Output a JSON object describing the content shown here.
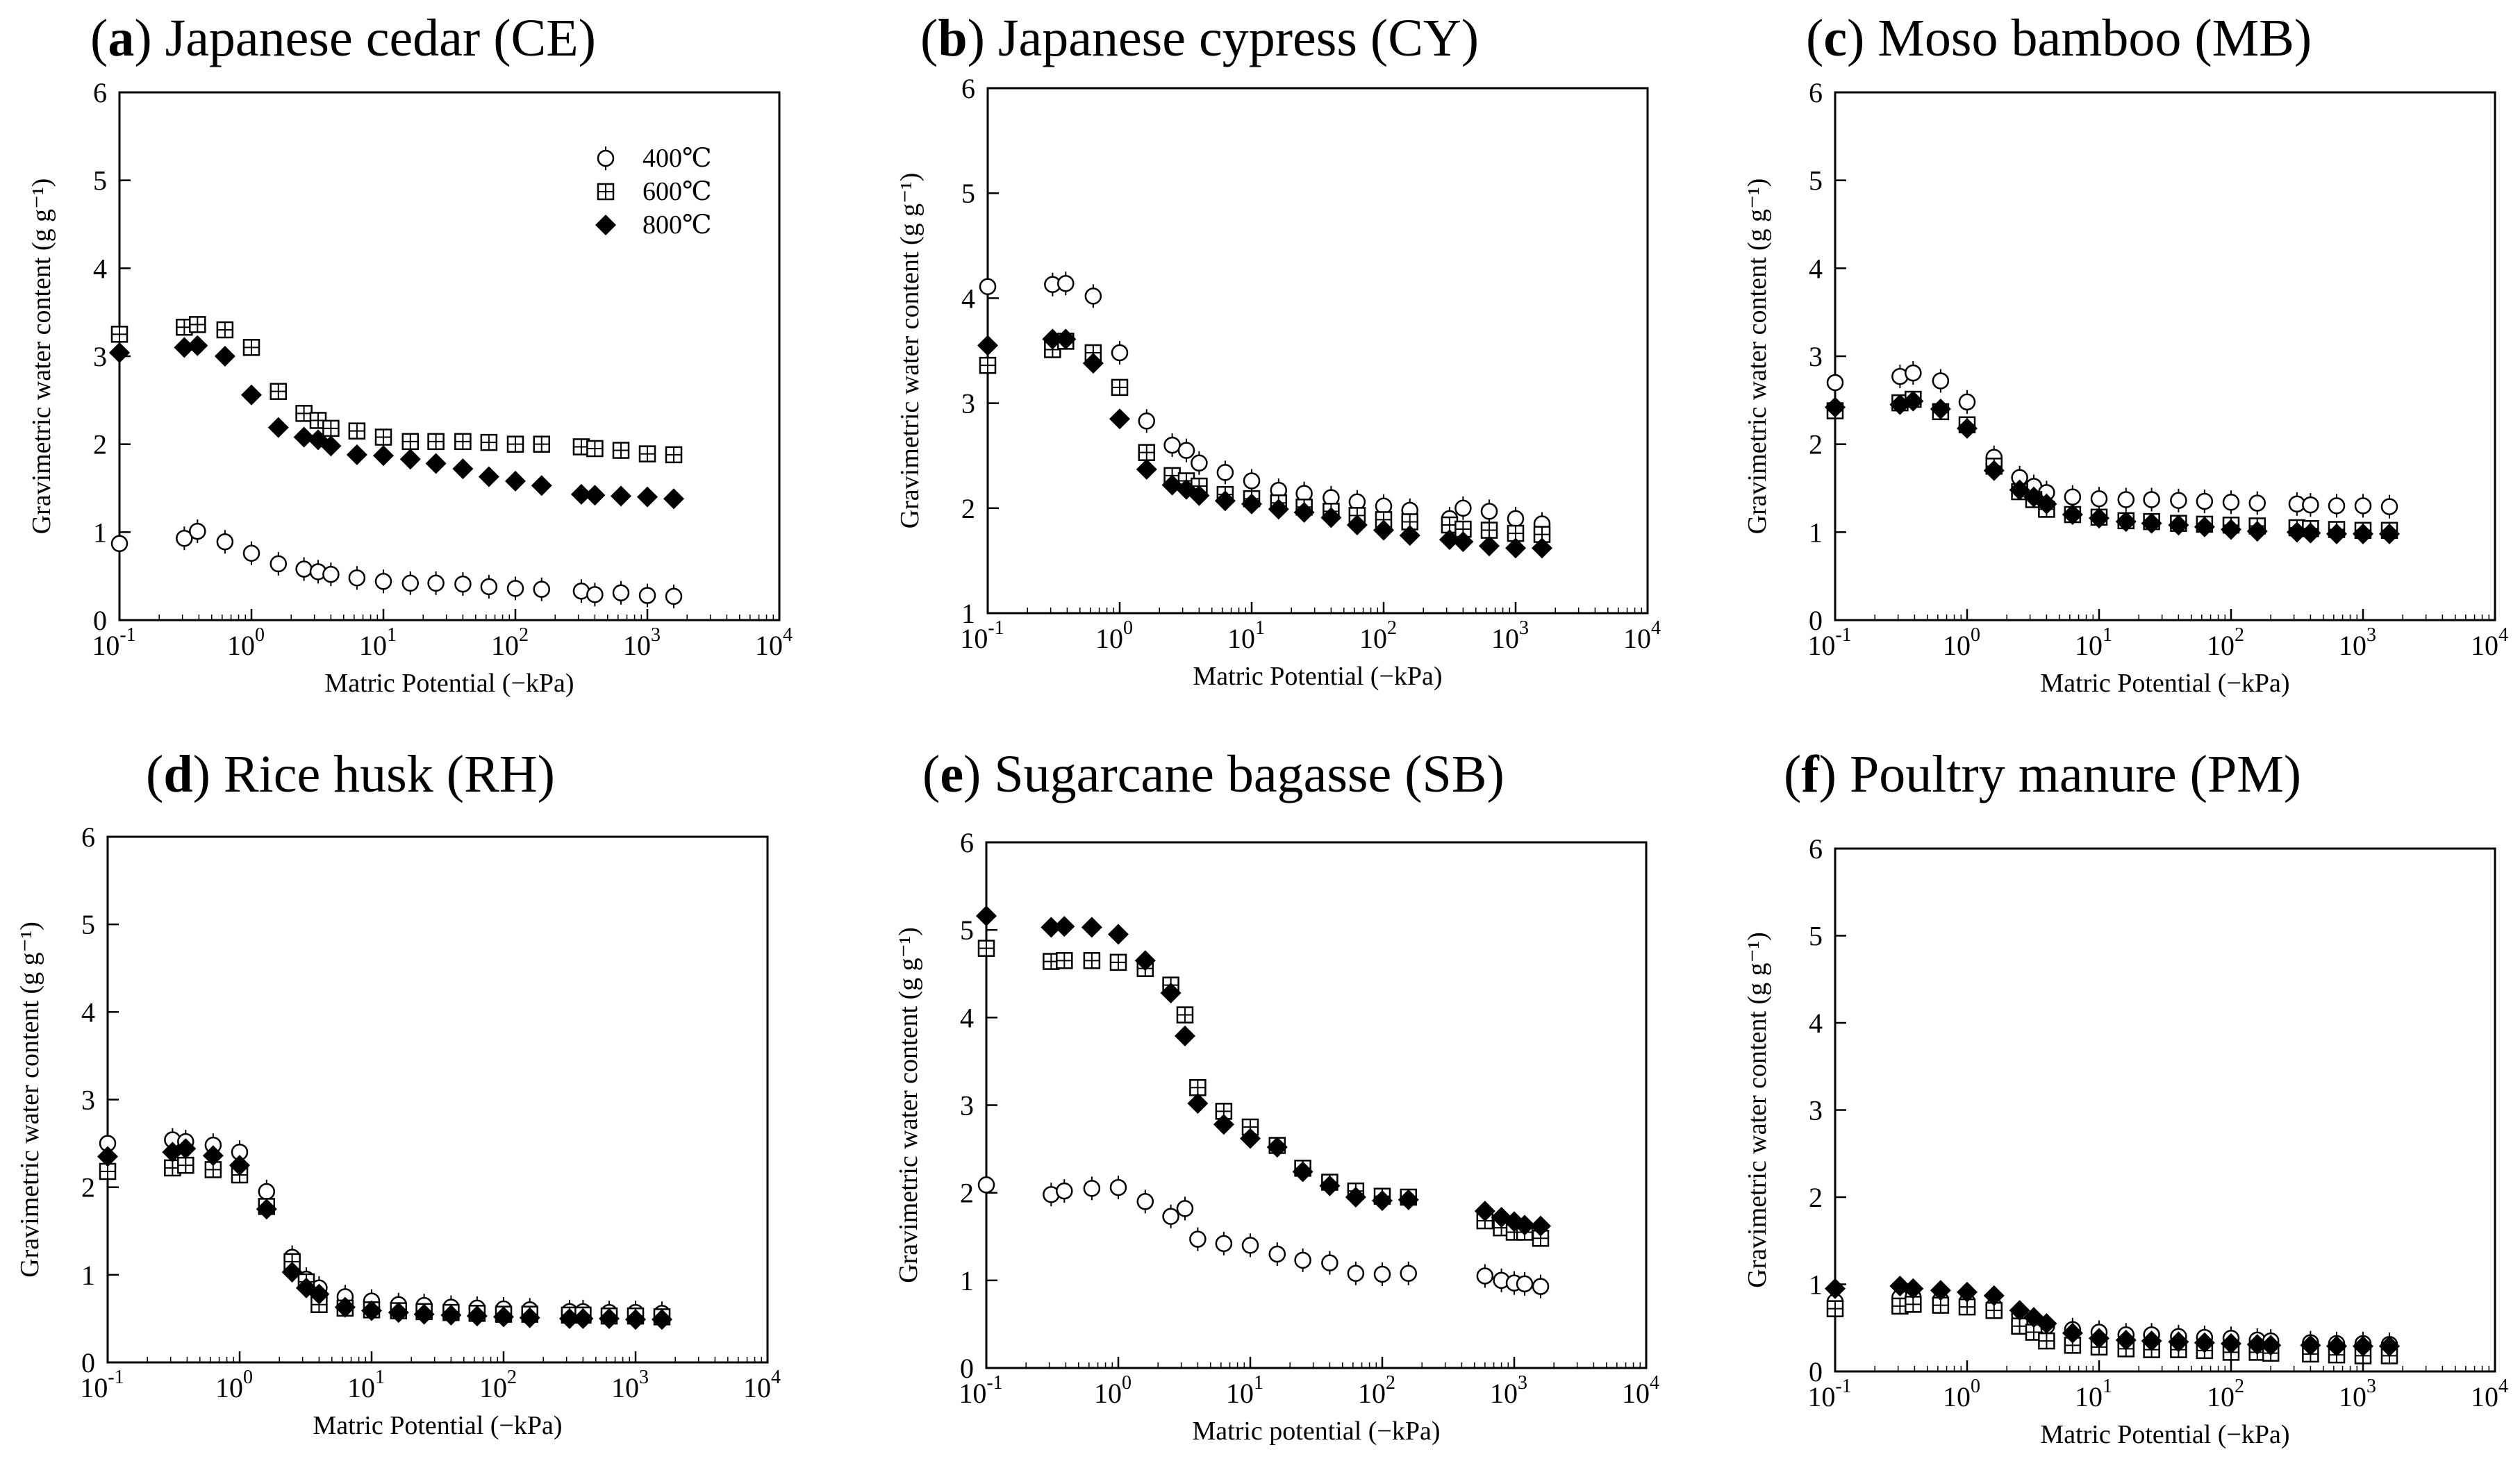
{
  "figure": {
    "legend": [
      "400℃",
      "600℃",
      "800℃"
    ],
    "marker_types": {
      "400℃": "open-circle",
      "600℃": "boxed-plus",
      "800℃": "filled-diamond"
    }
  },
  "chart_data": [
    {
      "type": "scatter",
      "panel_letter": "a",
      "title": "Japanese cedar (CE)",
      "xlabel": "Matric Potential (−kPa)",
      "ylabel": "Gravimetric water content (g g⁻¹)",
      "x_scale": "log",
      "xlim": [
        0.1,
        10000
      ],
      "ylim": [
        0,
        6
      ],
      "yticks": [
        0,
        1,
        2,
        3,
        4,
        5,
        6
      ],
      "legend": "top-right",
      "series": [
        {
          "name": "400℃",
          "marker": "circle",
          "x": [
            0.1,
            0.31,
            0.39,
            0.63,
            1.0,
            1.6,
            2.5,
            3.2,
            4.0,
            6.3,
            10,
            16,
            25,
            40,
            63,
            100,
            158,
            316,
            400,
            631,
            1000,
            1585
          ],
          "y": [
            0.87,
            0.93,
            1.01,
            0.89,
            0.76,
            0.64,
            0.58,
            0.55,
            0.52,
            0.48,
            0.44,
            0.42,
            0.42,
            0.41,
            0.38,
            0.36,
            0.35,
            0.33,
            0.29,
            0.31,
            0.28,
            0.27
          ]
        },
        {
          "name": "600℃",
          "marker": "boxed-plus",
          "x": [
            0.1,
            0.31,
            0.39,
            0.63,
            1.0,
            1.6,
            2.5,
            3.2,
            4.0,
            6.3,
            10,
            16,
            25,
            40,
            63,
            100,
            158,
            316,
            400,
            631,
            1000,
            1585
          ],
          "y": [
            3.25,
            3.33,
            3.36,
            3.3,
            3.1,
            2.6,
            2.35,
            2.27,
            2.18,
            2.15,
            2.08,
            2.03,
            2.03,
            2.03,
            2.02,
            2.0,
            2.0,
            1.97,
            1.95,
            1.93,
            1.89,
            1.88
          ]
        },
        {
          "name": "800℃",
          "marker": "diamond",
          "x": [
            0.1,
            0.31,
            0.39,
            0.63,
            1.0,
            1.6,
            2.5,
            3.2,
            4.0,
            6.3,
            10,
            16,
            25,
            40,
            63,
            100,
            158,
            316,
            400,
            631,
            1000,
            1585
          ],
          "y": [
            3.04,
            3.1,
            3.12,
            3.0,
            2.56,
            2.19,
            2.08,
            2.05,
            1.98,
            1.88,
            1.87,
            1.83,
            1.78,
            1.72,
            1.63,
            1.58,
            1.53,
            1.43,
            1.42,
            1.41,
            1.4,
            1.38
          ]
        }
      ]
    },
    {
      "type": "scatter",
      "panel_letter": "b",
      "title": "Japanese cypress (CY)",
      "xlabel": "Matric Potential (−kPa)",
      "ylabel": "Gravimetric water content (g g⁻¹)",
      "x_scale": "log",
      "xlim": [
        0.1,
        10000
      ],
      "ylim": [
        1,
        6
      ],
      "yticks": [
        1,
        2,
        3,
        4,
        5,
        6
      ],
      "series": [
        {
          "name": "400℃",
          "marker": "circle",
          "x": [
            0.1,
            0.31,
            0.39,
            0.63,
            1.0,
            1.6,
            2.5,
            3.2,
            4.0,
            6.3,
            10,
            16,
            25,
            40,
            63,
            100,
            158,
            316,
            400,
            631,
            1000,
            1585
          ],
          "y": [
            4.11,
            4.13,
            4.14,
            4.02,
            3.48,
            2.83,
            2.6,
            2.55,
            2.43,
            2.34,
            2.26,
            2.17,
            2.14,
            2.1,
            2.06,
            2.02,
            1.98,
            1.9,
            2.0,
            1.97,
            1.9,
            1.85
          ]
        },
        {
          "name": "600℃",
          "marker": "boxed-plus",
          "x": [
            0.1,
            0.31,
            0.39,
            0.63,
            1.0,
            1.6,
            2.5,
            3.2,
            4.0,
            6.3,
            10,
            16,
            25,
            40,
            63,
            100,
            158,
            316,
            400,
            631,
            1000,
            1585
          ],
          "y": [
            3.36,
            3.51,
            3.59,
            3.48,
            3.15,
            2.53,
            2.31,
            2.26,
            2.21,
            2.13,
            2.09,
            2.05,
            2.01,
            1.97,
            1.93,
            1.89,
            1.87,
            1.84,
            1.8,
            1.79,
            1.76,
            1.75
          ]
        },
        {
          "name": "800℃",
          "marker": "diamond",
          "x": [
            0.1,
            0.31,
            0.39,
            0.63,
            1.0,
            1.6,
            2.5,
            3.2,
            4.0,
            6.3,
            10,
            16,
            25,
            40,
            63,
            100,
            158,
            316,
            400,
            631,
            1000,
            1585
          ],
          "y": [
            3.55,
            3.61,
            3.61,
            3.38,
            2.85,
            2.37,
            2.22,
            2.18,
            2.12,
            2.07,
            2.04,
            1.99,
            1.96,
            1.91,
            1.84,
            1.79,
            1.74,
            1.7,
            1.68,
            1.64,
            1.62,
            1.62
          ]
        }
      ]
    },
    {
      "type": "scatter",
      "panel_letter": "c",
      "title": "Moso bamboo (MB)",
      "xlabel": "Matric Potential (−kPa)",
      "ylabel": "Gravimetric water content (g g⁻¹)",
      "x_scale": "log",
      "xlim": [
        0.1,
        10000
      ],
      "ylim": [
        0,
        6
      ],
      "yticks": [
        0,
        1,
        2,
        3,
        4,
        5,
        6
      ],
      "series": [
        {
          "name": "400℃",
          "marker": "circle",
          "x": [
            0.1,
            0.31,
            0.39,
            0.63,
            1.0,
            1.6,
            2.5,
            3.2,
            4.0,
            6.3,
            10,
            16,
            25,
            40,
            63,
            100,
            158,
            316,
            400,
            631,
            1000,
            1585
          ],
          "y": [
            2.7,
            2.77,
            2.81,
            2.72,
            2.48,
            1.85,
            1.62,
            1.52,
            1.45,
            1.4,
            1.38,
            1.37,
            1.37,
            1.36,
            1.35,
            1.34,
            1.33,
            1.32,
            1.31,
            1.3,
            1.3,
            1.29
          ]
        },
        {
          "name": "600℃",
          "marker": "boxed-plus",
          "x": [
            0.1,
            0.31,
            0.39,
            0.63,
            1.0,
            1.6,
            2.5,
            3.2,
            4.0,
            6.3,
            10,
            16,
            25,
            40,
            63,
            100,
            158,
            316,
            400,
            631,
            1000,
            1585
          ],
          "y": [
            2.38,
            2.47,
            2.51,
            2.37,
            2.22,
            1.75,
            1.46,
            1.37,
            1.26,
            1.2,
            1.17,
            1.13,
            1.12,
            1.1,
            1.09,
            1.08,
            1.07,
            1.05,
            1.04,
            1.03,
            1.02,
            1.02
          ]
        },
        {
          "name": "800℃",
          "marker": "diamond",
          "x": [
            0.1,
            0.31,
            0.39,
            0.63,
            1.0,
            1.6,
            2.5,
            3.2,
            4.0,
            6.3,
            10,
            16,
            25,
            40,
            63,
            100,
            158,
            316,
            400,
            631,
            1000,
            1585
          ],
          "y": [
            2.42,
            2.45,
            2.49,
            2.4,
            2.18,
            1.7,
            1.48,
            1.4,
            1.32,
            1.2,
            1.16,
            1.12,
            1.1,
            1.08,
            1.06,
            1.03,
            1.01,
            1.0,
            0.99,
            0.98,
            0.98,
            0.98
          ]
        }
      ]
    },
    {
      "type": "scatter",
      "panel_letter": "d",
      "title": "Rice husk (RH)",
      "xlabel": "Matric Potential (−kPa)",
      "ylabel": "Gravimetric water content (g g⁻¹)",
      "x_scale": "log",
      "xlim": [
        0.1,
        10000
      ],
      "ylim": [
        0,
        6
      ],
      "yticks": [
        0,
        1,
        2,
        3,
        4,
        5,
        6
      ],
      "series": [
        {
          "name": "400℃",
          "marker": "circle",
          "x": [
            0.1,
            0.31,
            0.39,
            0.63,
            1.0,
            1.6,
            2.5,
            3.2,
            4.0,
            6.3,
            10,
            16,
            25,
            40,
            63,
            100,
            158,
            316,
            400,
            631,
            1000,
            1585
          ],
          "y": [
            2.5,
            2.54,
            2.52,
            2.48,
            2.4,
            1.95,
            1.2,
            0.95,
            0.85,
            0.75,
            0.7,
            0.66,
            0.65,
            0.63,
            0.62,
            0.61,
            0.6,
            0.58,
            0.58,
            0.57,
            0.57,
            0.56
          ]
        },
        {
          "name": "600℃",
          "marker": "boxed-plus",
          "x": [
            0.1,
            0.31,
            0.39,
            0.63,
            1.0,
            1.6,
            2.5,
            3.2,
            4.0,
            6.3,
            10,
            16,
            25,
            40,
            63,
            100,
            158,
            316,
            400,
            631,
            1000,
            1585
          ],
          "y": [
            2.18,
            2.22,
            2.25,
            2.2,
            2.14,
            1.78,
            1.15,
            0.92,
            0.66,
            0.62,
            0.6,
            0.59,
            0.58,
            0.57,
            0.56,
            0.55,
            0.55,
            0.54,
            0.54,
            0.53,
            0.53,
            0.52
          ]
        },
        {
          "name": "800℃",
          "marker": "diamond",
          "x": [
            0.1,
            0.31,
            0.39,
            0.63,
            1.0,
            1.6,
            2.5,
            3.2,
            4.0,
            6.3,
            10,
            16,
            25,
            40,
            63,
            100,
            158,
            316,
            400,
            631,
            1000,
            1585
          ],
          "y": [
            2.35,
            2.4,
            2.44,
            2.36,
            2.25,
            1.75,
            1.03,
            0.85,
            0.78,
            0.63,
            0.59,
            0.57,
            0.55,
            0.54,
            0.53,
            0.52,
            0.51,
            0.5,
            0.5,
            0.5,
            0.49,
            0.49
          ]
        }
      ]
    },
    {
      "type": "scatter",
      "panel_letter": "e",
      "title": "Sugarcane bagasse (SB)",
      "xlabel": "Matric potential (−kPa)",
      "ylabel": "Gravimetric water content (g g⁻¹)",
      "x_scale": "log",
      "xlim": [
        0.1,
        10000
      ],
      "ylim": [
        0,
        6
      ],
      "yticks": [
        0,
        1,
        2,
        3,
        4,
        5,
        6
      ],
      "series": [
        {
          "name": "400℃",
          "marker": "circle",
          "x": [
            0.1,
            0.31,
            0.39,
            0.63,
            1.0,
            1.6,
            2.5,
            3.2,
            4.0,
            6.3,
            10,
            16,
            25,
            40,
            63,
            100,
            158,
            600,
            800,
            1000,
            1200,
            1585
          ],
          "y": [
            2.09,
            1.98,
            2.02,
            2.05,
            2.06,
            1.9,
            1.73,
            1.82,
            1.47,
            1.42,
            1.4,
            1.3,
            1.23,
            1.2,
            1.08,
            1.07,
            1.08,
            1.05,
            1.0,
            0.97,
            0.96,
            0.93
          ]
        },
        {
          "name": "600℃",
          "marker": "boxed-plus",
          "x": [
            0.1,
            0.31,
            0.39,
            0.63,
            1.0,
            1.6,
            2.5,
            3.2,
            4.0,
            6.3,
            10,
            16,
            25,
            40,
            63,
            100,
            158,
            600,
            800,
            1000,
            1200,
            1585
          ],
          "y": [
            4.79,
            4.64,
            4.65,
            4.65,
            4.63,
            4.56,
            4.37,
            4.03,
            3.2,
            2.93,
            2.75,
            2.54,
            2.28,
            2.12,
            2.02,
            1.96,
            1.95,
            1.68,
            1.6,
            1.55,
            1.55,
            1.48
          ]
        },
        {
          "name": "800℃",
          "marker": "diamond",
          "x": [
            0.1,
            0.31,
            0.39,
            0.63,
            1.0,
            1.6,
            2.5,
            3.2,
            4.0,
            6.3,
            10,
            16,
            25,
            40,
            63,
            100,
            158,
            600,
            800,
            1000,
            1200,
            1585
          ],
          "y": [
            5.16,
            5.03,
            5.04,
            5.03,
            4.95,
            4.65,
            4.28,
            3.79,
            3.02,
            2.78,
            2.62,
            2.52,
            2.24,
            2.08,
            1.95,
            1.91,
            1.92,
            1.79,
            1.72,
            1.67,
            1.63,
            1.62
          ]
        }
      ]
    },
    {
      "type": "scatter",
      "panel_letter": "f",
      "title": "Poultry manure (PM)",
      "xlabel": "Matric Potential (−kPa)",
      "ylabel": "Gravimetric water content (g g⁻¹)",
      "x_scale": "log",
      "xlim": [
        0.1,
        10000
      ],
      "ylim": [
        0,
        6
      ],
      "yticks": [
        0,
        1,
        2,
        3,
        4,
        5,
        6
      ],
      "series": [
        {
          "name": "400℃",
          "marker": "circle",
          "x": [
            0.1,
            0.31,
            0.39,
            0.63,
            1.0,
            1.6,
            2.5,
            3.2,
            4.0,
            6.3,
            10,
            16,
            25,
            40,
            63,
            100,
            158,
            200,
            400,
            631,
            1000,
            1585
          ],
          "y": [
            0.8,
            0.85,
            0.85,
            0.82,
            0.8,
            0.75,
            0.65,
            0.6,
            0.52,
            0.48,
            0.45,
            0.42,
            0.42,
            0.4,
            0.39,
            0.38,
            0.36,
            0.35,
            0.33,
            0.32,
            0.32,
            0.31
          ]
        },
        {
          "name": "600℃",
          "marker": "boxed-plus",
          "x": [
            0.1,
            0.31,
            0.39,
            0.63,
            1.0,
            1.6,
            2.5,
            3.2,
            4.0,
            6.3,
            10,
            16,
            25,
            40,
            63,
            100,
            158,
            200,
            400,
            631,
            1000,
            1585
          ],
          "y": [
            0.72,
            0.75,
            0.77,
            0.76,
            0.74,
            0.7,
            0.52,
            0.45,
            0.35,
            0.3,
            0.28,
            0.26,
            0.25,
            0.25,
            0.24,
            0.22,
            0.22,
            0.21,
            0.2,
            0.19,
            0.18,
            0.18
          ]
        },
        {
          "name": "800℃",
          "marker": "diamond",
          "x": [
            0.1,
            0.31,
            0.39,
            0.63,
            1.0,
            1.6,
            2.5,
            3.2,
            4.0,
            6.3,
            10,
            16,
            25,
            40,
            63,
            100,
            158,
            200,
            400,
            631,
            1000,
            1585
          ],
          "y": [
            0.95,
            0.98,
            0.95,
            0.93,
            0.91,
            0.87,
            0.7,
            0.62,
            0.55,
            0.44,
            0.38,
            0.36,
            0.35,
            0.34,
            0.33,
            0.32,
            0.31,
            0.3,
            0.3,
            0.29,
            0.29,
            0.29
          ]
        }
      ]
    }
  ]
}
